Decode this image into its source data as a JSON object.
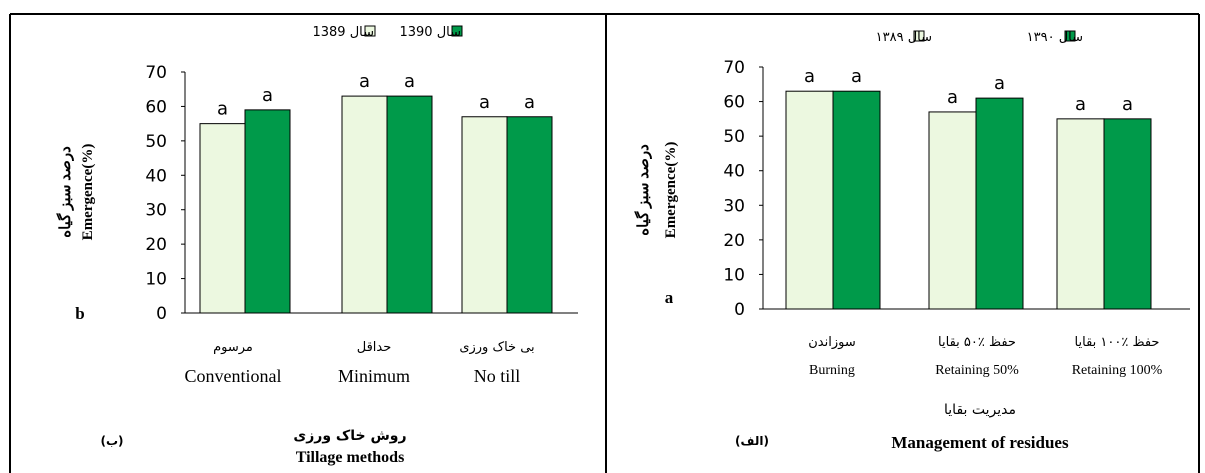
{
  "colors": {
    "year1": "#ecf8e0",
    "year2": "#009a4a",
    "stroke": "#000000"
  },
  "charts": [
    {
      "panel_letter": "b",
      "panel_label": "(ب)",
      "legend": [
        "سال 1389",
        "سال 1390"
      ],
      "ylabel_fa": "درصد سبز گیاه",
      "ylabel_en": "Emergence(%)",
      "xlabel_fa": "روش خاک ورزی",
      "xlabel_en": "Tillage methods",
      "yticks": [
        "0",
        "10",
        "20",
        "30",
        "40",
        "50",
        "60",
        "70"
      ],
      "chart_data": {
        "type": "bar",
        "categories_fa": [
          "مرسوم",
          "حداقل",
          "بی خاک ورزی"
        ],
        "categories": [
          "Conventional",
          "Minimum",
          "No till"
        ],
        "series": [
          {
            "name": "سال 1389",
            "values": [
              55,
              63,
              57
            ],
            "letters": [
              "a",
              "a",
              "a"
            ]
          },
          {
            "name": "سال 1390",
            "values": [
              59,
              63,
              57
            ],
            "letters": [
              "a",
              "a",
              "a"
            ]
          }
        ],
        "ylim": [
          0,
          70
        ]
      }
    },
    {
      "panel_letter": "a",
      "panel_label": "(الف)",
      "legend": [
        "سال ۱۳۸۹",
        "سال ۱۳۹۰"
      ],
      "ylabel_fa": "درصد سبز گیاه",
      "ylabel_en": "Emergence(%)",
      "xlabel_fa": "مدیریت بقایا",
      "xlabel_en": "Management of residues",
      "yticks": [
        "0",
        "10",
        "20",
        "30",
        "40",
        "50",
        "60",
        "70"
      ],
      "chart_data": {
        "type": "bar",
        "categories_fa": [
          "سوزاندن",
          "حفظ ٪۵۰ بقایا",
          "حفظ ٪۱۰۰ بقایا"
        ],
        "categories": [
          "Burning",
          "Retaining 50%",
          "Retaining 100%"
        ],
        "series": [
          {
            "name": "سال ۱۳۸۹",
            "values": [
              63,
              57,
              55
            ],
            "letters": [
              "a",
              "a",
              "a"
            ]
          },
          {
            "name": "سال ۱۳۹۰",
            "values": [
              63,
              61,
              55
            ],
            "letters": [
              "a",
              "a",
              "a"
            ]
          }
        ],
        "ylim": [
          0,
          70
        ]
      }
    }
  ]
}
